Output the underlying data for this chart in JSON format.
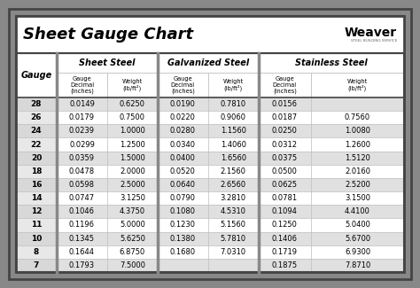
{
  "title": "Sheet Gauge Chart",
  "gauges": [
    "28",
    "26",
    "24",
    "22",
    "20",
    "18",
    "16",
    "14",
    "12",
    "11",
    "10",
    "8",
    "7"
  ],
  "sheet_steel": {
    "decimal": [
      "0.0149",
      "0.0179",
      "0.0239",
      "0.0299",
      "0.0359",
      "0.0478",
      "0.0598",
      "0.0747",
      "0.1046",
      "0.1196",
      "0.1345",
      "0.1644",
      "0.1793"
    ],
    "weight": [
      "0.6250",
      "0.7500",
      "1.0000",
      "1.2500",
      "1.5000",
      "2.0000",
      "2.5000",
      "3.1250",
      "4.3750",
      "5.0000",
      "5.6250",
      "6.8750",
      "7.5000"
    ]
  },
  "galvanized_steel": {
    "decimal": [
      "0.0190",
      "0.0220",
      "0.0280",
      "0.0340",
      "0.0400",
      "0.0520",
      "0.0640",
      "0.0790",
      "0.1080",
      "0.1230",
      "0.1380",
      "0.1680",
      ""
    ],
    "weight": [
      "0.7810",
      "0.9060",
      "1.1560",
      "1.4060",
      "1.6560",
      "2.1560",
      "2.6560",
      "3.2810",
      "4.5310",
      "5.1560",
      "5.7810",
      "7.0310",
      ""
    ]
  },
  "stainless_steel": {
    "decimal": [
      "0.0156",
      "0.0187",
      "0.0250",
      "0.0312",
      "0.0375",
      "0.0500",
      "0.0625",
      "0.0781",
      "0.1094",
      "0.1250",
      "0.1406",
      "0.1719",
      "0.1875"
    ],
    "weight": [
      "",
      "0.7560",
      "1.0080",
      "1.2600",
      "1.5120",
      "2.0160",
      "2.5200",
      "3.1500",
      "4.4100",
      "5.0400",
      "5.6700",
      "6.9300",
      "7.8710"
    ]
  },
  "outer_bg": "#888888",
  "inner_bg": "#ffffff",
  "row_even_bg": "#ffffff",
  "row_odd_bg": "#e0e0e0",
  "gauge_even_bg": "#d8d8d8",
  "gauge_odd_bg": "#e8e8e8",
  "section_div_color": "#888888",
  "cell_border_color": "#bbbbbb",
  "thick_border_color": "#444444",
  "header_section_bg": "#ffffff",
  "title_fontsize": 13,
  "section_fontsize": 7,
  "subheader_fontsize": 4.8,
  "data_fontsize": 6.0,
  "gauge_fontsize": 6.5
}
